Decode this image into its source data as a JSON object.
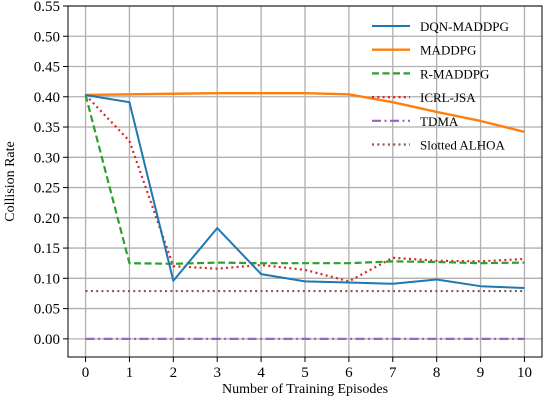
{
  "chart_data": {
    "type": "line",
    "title": "",
    "xlabel": "Number of Training Episodes",
    "ylabel": "Collision Rate",
    "x": [
      0,
      1,
      2,
      3,
      4,
      5,
      6,
      7,
      8,
      9,
      10
    ],
    "xlim": [
      -0.4,
      10.4
    ],
    "ylim": [
      -0.03,
      0.55
    ],
    "xticks": [
      "0",
      "1",
      "2",
      "3",
      "4",
      "5",
      "6",
      "7",
      "8",
      "9",
      "10"
    ],
    "yticks": [
      "0.00",
      "0.05",
      "0.10",
      "0.15",
      "0.20",
      "0.25",
      "0.30",
      "0.35",
      "0.40",
      "0.45",
      "0.50",
      "0.55"
    ],
    "grid": true,
    "legend_position": "top-right",
    "series": [
      {
        "name": "DQN-MADDPG",
        "color": "#1f77b4",
        "style": "solid",
        "values": [
          0.403,
          0.391,
          0.096,
          0.183,
          0.107,
          0.095,
          0.093,
          0.091,
          0.098,
          0.087,
          0.084
        ]
      },
      {
        "name": "MADDPG",
        "color": "#ff7f0e",
        "style": "solid",
        "values": [
          0.403,
          0.404,
          0.405,
          0.406,
          0.406,
          0.406,
          0.404,
          0.391,
          0.375,
          0.36,
          0.342
        ]
      },
      {
        "name": "R-MADDPG",
        "color": "#2ca02c",
        "style": "dashed",
        "values": [
          0.403,
          0.125,
          0.124,
          0.126,
          0.125,
          0.125,
          0.125,
          0.128,
          0.127,
          0.125,
          0.126
        ]
      },
      {
        "name": "ICRL-JSA",
        "color": "#d62728",
        "style": "dotted",
        "values": [
          0.403,
          0.327,
          0.12,
          0.116,
          0.122,
          0.114,
          0.095,
          0.134,
          0.129,
          0.128,
          0.132
        ]
      },
      {
        "name": "TDMA",
        "color": "#9467bd",
        "style": "dashdot",
        "values": [
          0.0,
          0.0,
          0.0,
          0.0,
          0.0,
          0.0,
          0.0,
          0.0,
          0.0,
          0.0,
          0.0
        ]
      },
      {
        "name": "Slotted ALHOA",
        "color": "#8c564b",
        "style": "dotted",
        "values": [
          0.079,
          0.079,
          0.079,
          0.079,
          0.079,
          0.079,
          0.079,
          0.079,
          0.079,
          0.079,
          0.079
        ]
      }
    ]
  }
}
